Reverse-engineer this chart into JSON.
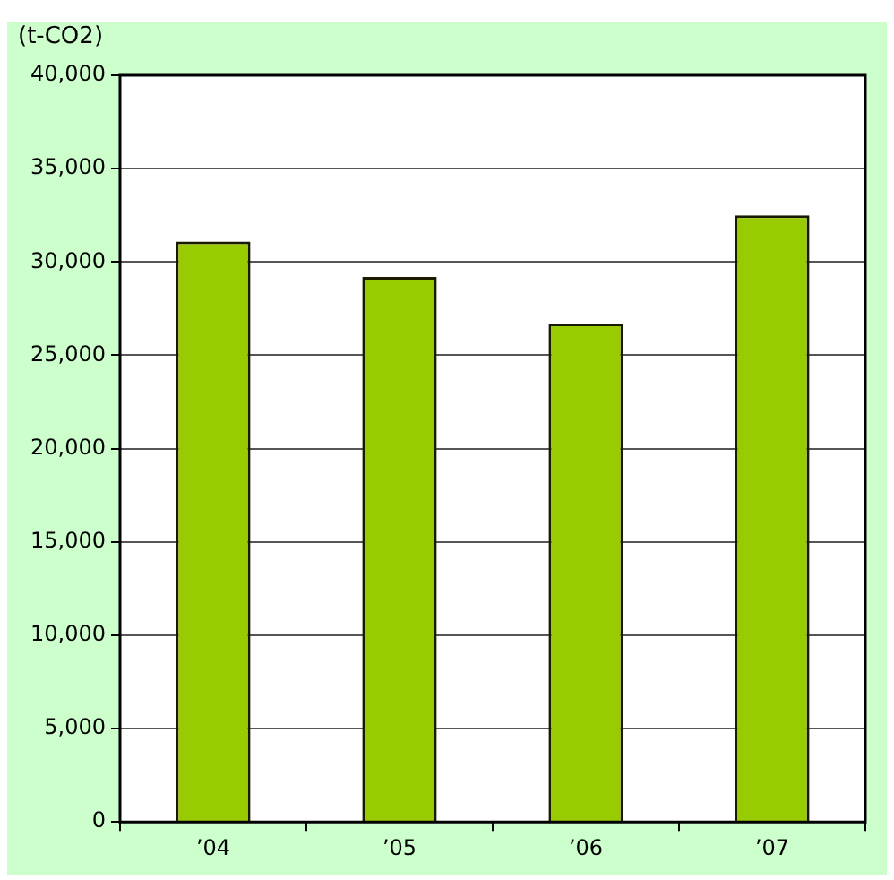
{
  "chart_data": {
    "type": "bar",
    "ylabel": "(t-CO2)",
    "categories": [
      "’04",
      "’05",
      "’06",
      "’07"
    ],
    "values": [
      31100,
      29200,
      26700,
      32500
    ],
    "color": "#99cc00",
    "ylim": [
      0,
      40000
    ],
    "yticks": [
      0,
      {
        "value": 5000,
        "label": "5,000"
      },
      {
        "value": 10000,
        "label": "10,000"
      },
      {
        "value": 15000,
        "label": "15,000"
      },
      {
        "value": 20000,
        "label": "20,000"
      },
      {
        "value": 25000,
        "label": "25,000"
      },
      {
        "value": 30000,
        "label": "30,000"
      },
      {
        "value": 35000,
        "label": "35,000"
      },
      {
        "value": 40000,
        "label": "40,000"
      }
    ],
    "grid": "y",
    "legend": false
  }
}
